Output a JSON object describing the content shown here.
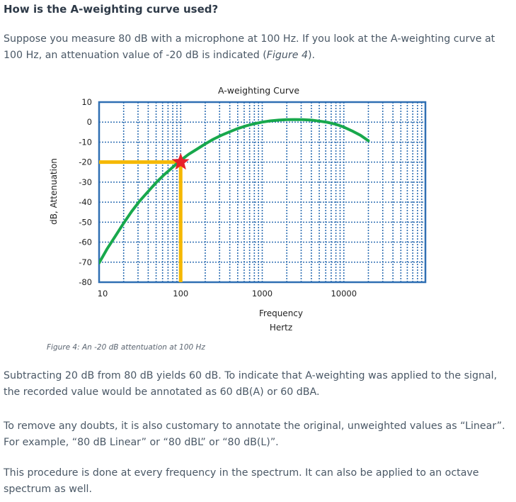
{
  "heading": "How is the A-weighting curve used?",
  "intro": {
    "before": "Suppose you measure 80 dB with a microphone at 100 Hz. If you look at the A-weighting curve at 100 Hz, an attenuation value of -20 dB is indicated (",
    "ref": "Figure 4",
    "after": ")."
  },
  "figure_caption": "Figure 4: An -20 dB attentuation at 100 Hz",
  "paragraphs": [
    "Subtracting 20 dB from 80 dB yields 60 dB.  To indicate that A-weighting was applied to the signal, the recorded value would be annotated as 60 dB(A) or 60 dBA.",
    "To remove any doubts, it is also customary to annotate the original, unweighted values as “Linear”. For example, “80 dB Linear” or “80 dBL” or “80 dB(L)”.",
    "This procedure is done at every frequency in the spectrum.  It can also be applied to an octave spectrum as well."
  ],
  "chart_data": {
    "type": "line",
    "title": "A-weighting Curve",
    "xlabel_lines": [
      "Frequency",
      "Hertz"
    ],
    "ylabel": "dB, Attenuation",
    "x_scale": "log",
    "xlim": [
      10,
      100000
    ],
    "ylim": [
      -80,
      10
    ],
    "x_ticks": [
      10,
      100,
      1000,
      10000
    ],
    "x_tick_labels": [
      "10",
      "100",
      "1000",
      "10000"
    ],
    "y_ticks": [
      10,
      0,
      -10,
      -20,
      -30,
      -40,
      -50,
      -60,
      -70,
      -80
    ],
    "y_tick_labels": [
      "10",
      "0",
      "-10",
      "-20",
      "-30",
      "-40",
      "-50",
      "-60",
      "-70",
      "-80"
    ],
    "grid": true,
    "series": [
      {
        "color": "#18a84c",
        "x": [
          10,
          12.5,
          16,
          20,
          25,
          31.5,
          40,
          50,
          63,
          80,
          100,
          125,
          160,
          200,
          250,
          315,
          400,
          500,
          630,
          800,
          1000,
          1250,
          1600,
          2000,
          2500,
          3150,
          4000,
          5000,
          6300,
          8000,
          10000,
          12500,
          16000,
          20000
        ],
        "y": [
          -70.4,
          -63.4,
          -56.7,
          -50.5,
          -44.7,
          -39.4,
          -34.6,
          -30.2,
          -26.2,
          -22.5,
          -19.1,
          -16.1,
          -13.4,
          -10.9,
          -8.6,
          -6.6,
          -4.8,
          -3.2,
          -1.9,
          -0.8,
          0.0,
          0.6,
          1.0,
          1.2,
          1.3,
          1.2,
          1.0,
          0.5,
          -0.1,
          -1.1,
          -2.5,
          -4.3,
          -6.6,
          -9.3
        ]
      }
    ],
    "highlight": {
      "x": 100,
      "y": -20,
      "marker": "star",
      "marker_color": "#e8202a",
      "line_color": "#f5b800"
    },
    "colors": {
      "frame": "#2f6fb3",
      "grid": "#2f6fb3",
      "curve": "#18a84c",
      "guide": "#f5b800",
      "star": "#e8202a"
    }
  }
}
